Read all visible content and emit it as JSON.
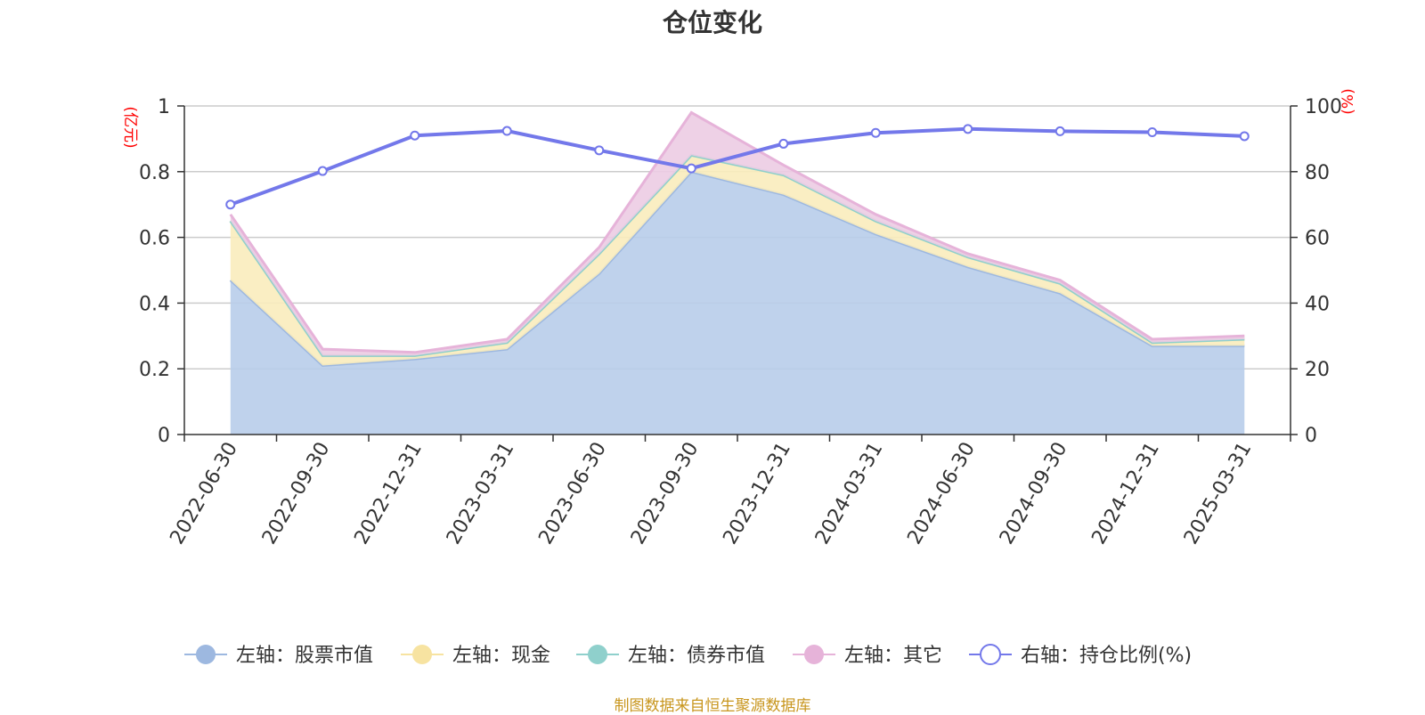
{
  "title": "仓位变化",
  "source_note": "制图数据来自恒生聚源数据库",
  "chart_data": {
    "type": "area",
    "categories": [
      "2022-06-30",
      "2022-09-30",
      "2022-12-31",
      "2023-03-31",
      "2023-06-30",
      "2023-09-30",
      "2023-12-31",
      "2024-03-31",
      "2024-06-30",
      "2024-09-30",
      "2024-12-31",
      "2025-03-31"
    ],
    "left_axis": {
      "unit": "(亿元)",
      "ylim": [
        0,
        1
      ],
      "ticks": [
        "0",
        "0.2",
        "0.4",
        "0.6",
        "0.8",
        "1"
      ]
    },
    "right_axis": {
      "unit": "(%)",
      "ylim": [
        0,
        100
      ],
      "ticks": [
        "0",
        "20",
        "40",
        "60",
        "80",
        "100"
      ]
    },
    "grid": true,
    "legend_position": "bottom",
    "series": [
      {
        "name": "左轴：股票市值",
        "axis": "left",
        "stacked": true,
        "color": "#9db8e0",
        "fill": "#b8cdea",
        "values": [
          0.47,
          0.21,
          0.23,
          0.26,
          0.49,
          0.8,
          0.73,
          0.61,
          0.51,
          0.43,
          0.27,
          0.27
        ]
      },
      {
        "name": "左轴：现金",
        "axis": "left",
        "stacked": true,
        "color": "#f7e3a1",
        "fill": "#f9ecbc",
        "values": [
          0.18,
          0.03,
          0.01,
          0.02,
          0.06,
          0.05,
          0.06,
          0.04,
          0.03,
          0.03,
          0.01,
          0.02
        ]
      },
      {
        "name": "左轴：债券市值",
        "axis": "left",
        "stacked": true,
        "color": "#8fd0cc",
        "fill": "#a8dbd8",
        "values": [
          0,
          0,
          0,
          0,
          0,
          0,
          0,
          0,
          0,
          0,
          0,
          0
        ]
      },
      {
        "name": "左轴：其它",
        "axis": "left",
        "stacked": true,
        "color": "#e6b3d9",
        "fill": "#eccce3",
        "values": [
          0.02,
          0.02,
          0.01,
          0.01,
          0.02,
          0.13,
          0.03,
          0.02,
          0.01,
          0.01,
          0.01,
          0.01
        ]
      },
      {
        "name": "右轴：持仓比例(%)",
        "axis": "right",
        "type": "line",
        "color": "#7378ea",
        "values": [
          70.0,
          80.2,
          91.0,
          92.4,
          86.5,
          81.0,
          88.5,
          91.8,
          93.0,
          92.3,
          92.0,
          90.8
        ]
      }
    ]
  }
}
